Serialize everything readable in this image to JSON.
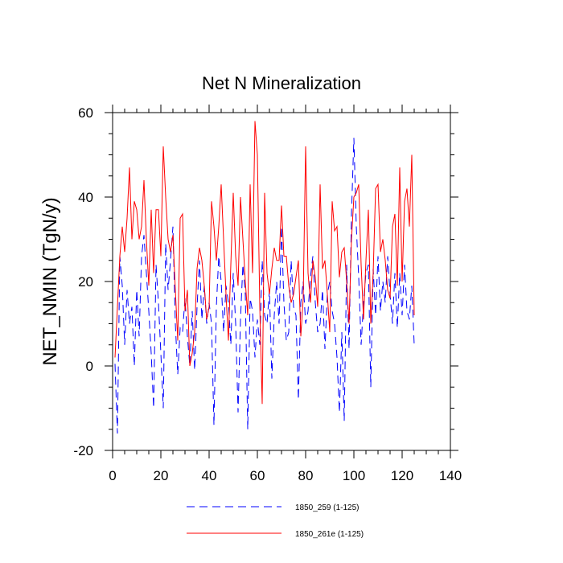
{
  "chart_data": {
    "type": "line",
    "title": "Net N Mineralization",
    "xlabel": "",
    "ylabel": "NET_NMIN  (TgN/y)",
    "xlim": [
      0,
      140
    ],
    "ylim": [
      -20,
      60
    ],
    "x_ticks": [
      0,
      20,
      40,
      60,
      80,
      100,
      120,
      140
    ],
    "y_ticks": [
      -20,
      0,
      20,
      40,
      60
    ],
    "legend_position": "bottom-center",
    "series": [
      {
        "name": "1850_259 (1-125)",
        "color": "#0000ff",
        "style": "dashed",
        "values": [
          0.5,
          -16,
          26,
          19,
          5,
          18,
          10,
          14,
          0,
          18,
          7,
          26,
          31,
          22,
          13,
          3,
          -10,
          24,
          15,
          3,
          -10,
          29,
          18,
          25,
          33,
          10,
          -2,
          9,
          8,
          16,
          7,
          0,
          13,
          -1,
          14,
          25,
          11,
          19,
          10,
          15,
          10,
          -14,
          14,
          26,
          20,
          8,
          19,
          15,
          5,
          22,
          10,
          -11,
          11,
          24,
          17,
          -15,
          16,
          13,
          2,
          11,
          5,
          25,
          12,
          10,
          18,
          -3,
          12,
          20,
          10,
          33,
          15,
          6,
          8,
          25,
          14,
          12,
          -8,
          15,
          20,
          10,
          13,
          21,
          26,
          15,
          8,
          10,
          18,
          4,
          17,
          20,
          13,
          10,
          2,
          -11,
          8,
          -13,
          24,
          4,
          36,
          54,
          33,
          21,
          5,
          15,
          22,
          24,
          -5,
          23,
          12,
          26,
          13,
          20,
          15,
          26,
          17,
          10,
          22,
          9,
          22,
          12,
          24,
          13,
          11,
          19,
          5
        ]
      },
      {
        "name": "1850_261e (1-125)",
        "color": "#ff0000",
        "style": "solid",
        "values": [
          2,
          14,
          26,
          33,
          27,
          35,
          47,
          30,
          39,
          37,
          30,
          33,
          44,
          30,
          19,
          37,
          22,
          37,
          37,
          26,
          52,
          40,
          30,
          27,
          31,
          18,
          6,
          35,
          36,
          13,
          18,
          0,
          3,
          8,
          23,
          28,
          25,
          19,
          11,
          14,
          39,
          33,
          25,
          33,
          43,
          30,
          17,
          6,
          24,
          41,
          26,
          19,
          40,
          30,
          20,
          12,
          43,
          22,
          58,
          50,
          14,
          -9,
          41,
          22,
          17,
          23,
          28,
          25,
          25,
          38,
          26,
          26,
          19,
          15,
          17,
          21,
          25,
          7,
          16,
          52,
          22,
          15,
          25,
          21,
          14,
          43,
          23,
          25,
          17,
          8,
          39,
          32,
          33,
          21,
          27,
          28,
          20,
          10,
          30,
          40,
          41,
          43,
          24,
          11,
          25,
          37,
          10,
          22,
          42,
          43,
          27,
          30,
          25,
          18,
          16,
          33,
          36,
          19,
          47,
          20,
          39,
          42,
          33,
          50,
          12
        ]
      }
    ]
  }
}
